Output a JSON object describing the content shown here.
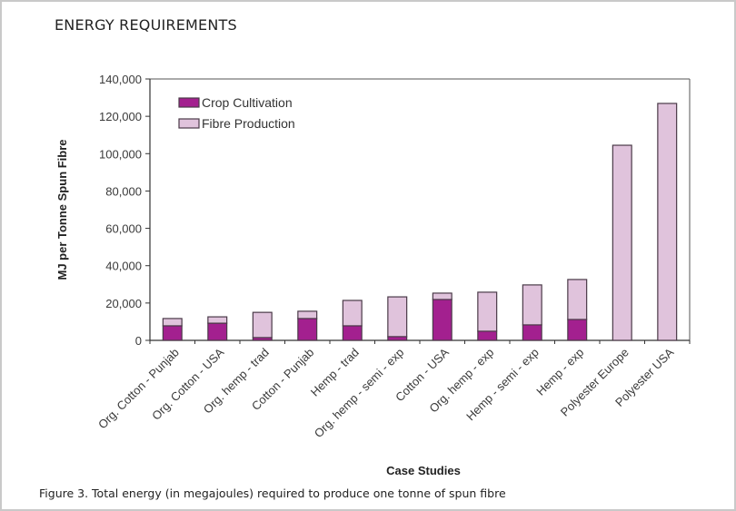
{
  "page": {
    "section_title": "ENERGY REQUIREMENTS",
    "caption": "Figure 3. Total energy (in megajoules) required to produce one tonne of spun fibre"
  },
  "colors": {
    "crop_cultivation": "#a3208f",
    "fibre_production": "#e0c3dc",
    "bar_outline": "#4a3a48",
    "axis": "#333333"
  },
  "chart_data": {
    "type": "bar",
    "stacked": true,
    "title": "",
    "xlabel": "Case Studies",
    "ylabel": "MJ per Tonne Spun Fibre",
    "ylim": [
      0,
      140000
    ],
    "yticks": [
      0,
      20000,
      40000,
      60000,
      80000,
      100000,
      120000,
      140000
    ],
    "ytick_labels": [
      "0",
      "20,000",
      "40,000",
      "60,000",
      "80,000",
      "100,000",
      "120,000",
      "140,000"
    ],
    "grid": false,
    "legend_position": "top-left",
    "categories": [
      "Org. Cotton - Punjab",
      "Org. Cotton - USA",
      "Org. hemp - trad",
      "Cotton - Punjab",
      "Hemp - trad",
      "Org. hemp - semi - exp",
      "Cotton - USA",
      "Org. hemp - exp",
      "Hemp - semi - exp",
      "Hemp - exp",
      "Polyester Europe",
      "Polyester USA"
    ],
    "series": [
      {
        "name": "Crop Cultivation",
        "values": [
          7800,
          9200,
          1500,
          11700,
          7800,
          2000,
          21900,
          4900,
          8300,
          11200,
          0,
          0
        ]
      },
      {
        "name": "Fibre Production",
        "values": [
          3900,
          3400,
          13500,
          3900,
          13600,
          21300,
          3400,
          20900,
          21400,
          21400,
          104500,
          126900
        ]
      }
    ]
  }
}
